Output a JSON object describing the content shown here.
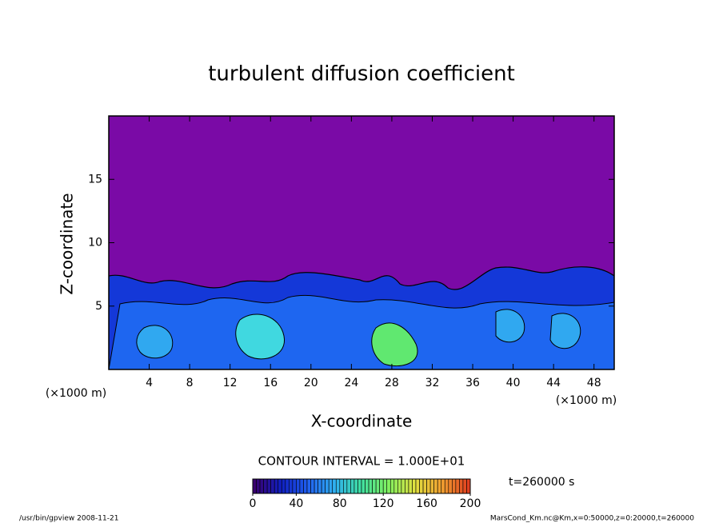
{
  "chart_data": {
    "type": "contour",
    "title": "turbulent diffusion coefficient",
    "xlabel": "X-coordinate",
    "ylabel": "Z-coordinate",
    "x_unit_label": "(×1000 m)",
    "xlim": [
      0,
      50
    ],
    "xticks": [
      4,
      8,
      12,
      16,
      20,
      24,
      28,
      32,
      36,
      40,
      44,
      48
    ],
    "ylim": [
      0,
      20
    ],
    "yticks": [
      5,
      10,
      15
    ],
    "background_color": "#7a0aa6",
    "colorbar": {
      "lim": [
        0,
        200
      ],
      "ticks": [
        0,
        40,
        80,
        120,
        160,
        200
      ],
      "colormap": [
        "#3a0070",
        "#1020c0",
        "#2060f0",
        "#30b0f0",
        "#40e0a0",
        "#80f060",
        "#e0e040",
        "#f0a030",
        "#e04020"
      ]
    },
    "contour_interval": "CONTOUR INTERVAL = 1.000E+01",
    "time_label": "t=260000 s",
    "footer_left": "/usr/bin/gpview  2008-11-21",
    "footer_right": "MarsCond_Km.nc@Km,x=0:50000,z=0:20000,t=260000"
  }
}
